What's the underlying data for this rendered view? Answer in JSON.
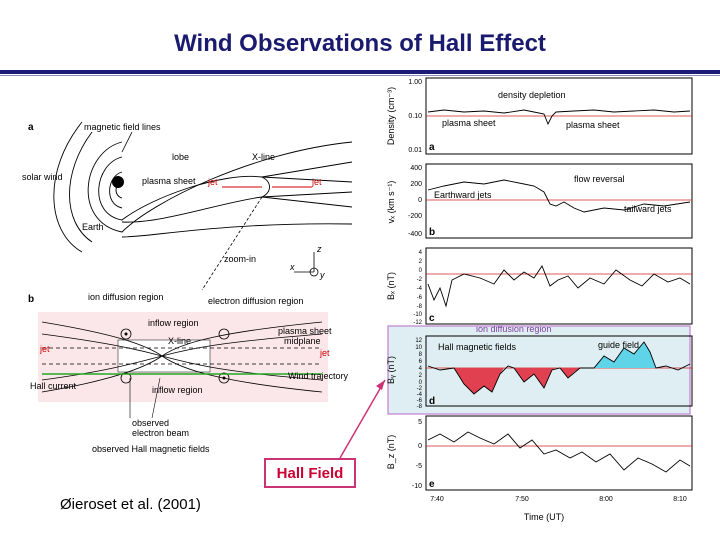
{
  "slide": {
    "title": "Wind Observations of Hall Effect",
    "citation": "Øieroset et al. (2001)",
    "callout": "Hall Field"
  },
  "diagram_a": {
    "panel_label": "a",
    "labels": {
      "magnetic_field_lines": "magnetic field lines",
      "lobe": "lobe",
      "x_line": "X-line",
      "solar_wind": "solar wind",
      "plasma_sheet": "plasma sheet",
      "jet_left": "jet",
      "jet_right": "jet",
      "earth": "Earth",
      "zoom_in": "zoom-in",
      "axis_z": "z",
      "axis_x": "x",
      "axis_y": "y"
    }
  },
  "diagram_b": {
    "panel_label": "b",
    "labels": {
      "ion_diffusion_region": "ion diffusion region",
      "electron_diffusion_region": "electron diffusion region",
      "inflow_region_top": "inflow region",
      "x_line": "X-line",
      "plasma_sheet_midplane_1": "plasma sheet",
      "plasma_sheet_midplane_2": "midplane",
      "jet_left": "jet",
      "jet_right": "jet",
      "hall_current": "Hall current",
      "wind_trajectory": "Wind trajectory",
      "inflow_region_bottom": "inflow region",
      "observed_electron_beam_1": "observed",
      "observed_electron_beam_2": "electron beam",
      "observed_hall_fields": "observed Hall magnetic fields"
    }
  },
  "plots": {
    "panel_a": {
      "label": "a",
      "ylabel": "Density (cm⁻³)",
      "ticks": [
        "1.00",
        "0.10",
        "0.01"
      ],
      "annotations": [
        "density depletion",
        "plasma sheet",
        "plasma sheet"
      ]
    },
    "panel_b": {
      "label": "b",
      "ylabel": "vₓ (km s⁻¹)",
      "ticks": [
        "400",
        "200",
        "0",
        "-200",
        "-400"
      ],
      "annotations": [
        "flow reversal",
        "Earthward jets",
        "tailward jets"
      ]
    },
    "panel_c": {
      "label": "c",
      "ylabel": "Bₓ (nT)",
      "ticks": [
        "4",
        "2",
        "0",
        "-2",
        "-4",
        "-6",
        "-8",
        "-10",
        "-12"
      ]
    },
    "panel_d": {
      "label": "d",
      "ylabel": "Bᵧ (nT)",
      "ticks": [
        "12",
        "10",
        "8",
        "6",
        "4",
        "2",
        "0",
        "-2",
        "-4",
        "-6",
        "-8"
      ],
      "annotations": [
        "ion diffusion region",
        "Hall magnetic fields",
        "guide field"
      ],
      "highlight_color": "#dfeef2",
      "positive_fill": "#5fd3e8",
      "negative_fill": "#e04050"
    },
    "panel_e": {
      "label": "e",
      "ylabel": "B_z (nT)",
      "ticks": [
        "5",
        "0",
        "-5",
        "-10"
      ]
    },
    "time_ticks": [
      "7:40",
      "7:50",
      "8:00",
      "8:10"
    ],
    "time_label": "Time (UT)"
  }
}
